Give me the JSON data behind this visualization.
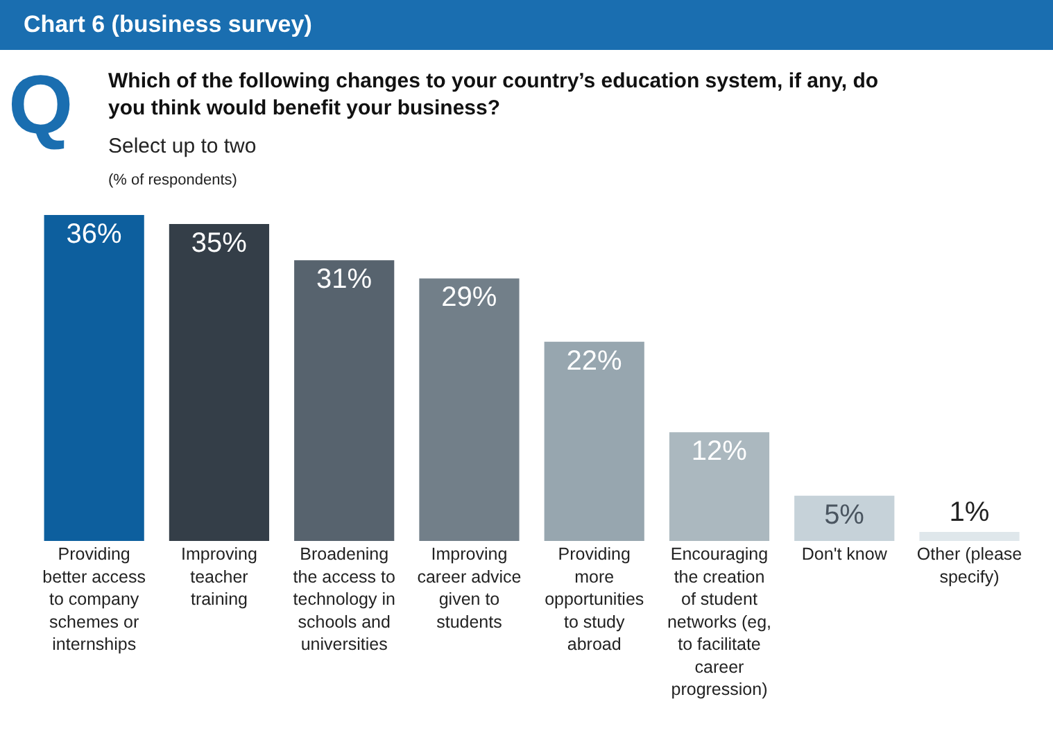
{
  "chart_data": {
    "type": "bar",
    "title": "Chart 6 (business survey)",
    "subtitle": "Which of the following changes to your country’s education system, if any, do you think would benefit your business?",
    "annotations": [
      "Q",
      "Select up to two",
      "(% of respondents)"
    ],
    "categories": [
      "Providing better access to company schemes or internships",
      "Improving teacher training",
      "Broadening the access to technology in schools and universities",
      "Improving career advice given to students",
      "Providing more opportunities to study abroad",
      "Encouraging the creation of student networks (eg, to facilitate career progression)",
      "Don't know",
      "Other (please specify)"
    ],
    "values": [
      36,
      35,
      31,
      29,
      22,
      12,
      5,
      1
    ],
    "value_labels": [
      "36%",
      "35%",
      "31%",
      "29%",
      "22%",
      "12%",
      "5%",
      "1%"
    ],
    "colors": [
      "#0d5f9e",
      "#343e48",
      "#57636e",
      "#727f89",
      "#97a6af",
      "#abb8bf",
      "#c6d2d9",
      "#dfe7eb"
    ]
  }
}
